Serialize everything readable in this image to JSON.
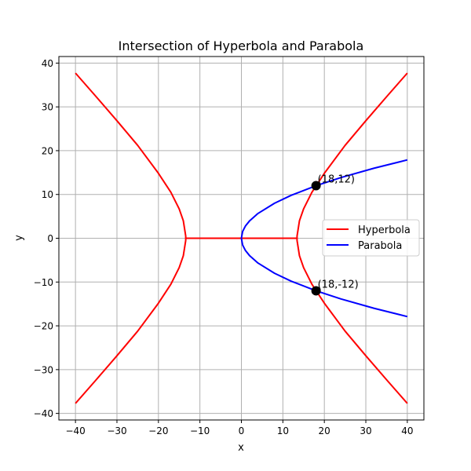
{
  "chart_data": {
    "type": "line",
    "title": "Intersection of Hyperbola and Parabola",
    "xlabel": "x",
    "ylabel": "y",
    "xlim": [
      -44,
      44
    ],
    "ylim": [
      -41.5,
      41.5
    ],
    "xticks": [
      -40,
      -30,
      -20,
      -10,
      0,
      10,
      20,
      30,
      40
    ],
    "yticks": [
      -40,
      -30,
      -20,
      -10,
      0,
      10,
      20,
      30,
      40
    ],
    "grid": true,
    "legend_position": "center-right",
    "series": [
      {
        "name": "Hyperbola",
        "color": "#ff0000",
        "segments": [
          {
            "x": [
              -40,
              -35,
              -30,
              -25,
              -20,
              -17,
              -15,
              -14,
              -13.42,
              -13.42
            ],
            "y": [
              37.71,
              32.31,
              26.83,
              21.21,
              14.83,
              10.49,
              6.71,
              4.0,
              0.5,
              0
            ]
          },
          {
            "x": [
              -40,
              -35,
              -30,
              -25,
              -20,
              -17,
              -15,
              -14,
              -13.42,
              -13.42
            ],
            "y": [
              -37.71,
              -32.31,
              -26.83,
              -21.21,
              -14.83,
              -10.49,
              -6.71,
              -4.0,
              -0.5,
              0
            ]
          },
          {
            "x": [
              -13.42,
              13.42
            ],
            "y": [
              0,
              0
            ]
          },
          {
            "x": [
              13.42,
              13.42,
              14,
              15,
              17,
              20,
              25,
              30,
              35,
              40
            ],
            "y": [
              0,
              0.5,
              4.0,
              6.71,
              10.49,
              14.83,
              21.21,
              26.83,
              32.31,
              37.71
            ]
          },
          {
            "x": [
              13.42,
              13.42,
              14,
              15,
              17,
              20,
              25,
              30,
              35,
              40
            ],
            "y": [
              0,
              -0.5,
              -4.0,
              -6.71,
              -10.49,
              -14.83,
              -21.21,
              -26.83,
              -32.31,
              -37.71
            ]
          }
        ]
      },
      {
        "name": "Parabola",
        "color": "#0000ff",
        "segments": [
          {
            "x": [
              40,
              32,
              24,
              18,
              12,
              8,
              4,
              2,
              1,
              0.3,
              0
            ],
            "y": [
              17.89,
              16.0,
              13.86,
              12.0,
              9.8,
              8.0,
              5.66,
              4.0,
              2.83,
              1.55,
              0
            ]
          },
          {
            "x": [
              0,
              0.3,
              1,
              2,
              4,
              8,
              12,
              18,
              24,
              32,
              40
            ],
            "y": [
              0,
              -1.55,
              -2.83,
              -4.0,
              -5.66,
              -8.0,
              -9.8,
              -12.0,
              -13.86,
              -16.0,
              -17.89
            ]
          }
        ]
      }
    ],
    "points": [
      {
        "x": 18,
        "y": 12,
        "label": "(18,12)",
        "color": "#000000"
      },
      {
        "x": 18,
        "y": -12,
        "label": "(18,-12)",
        "color": "#000000"
      }
    ]
  }
}
